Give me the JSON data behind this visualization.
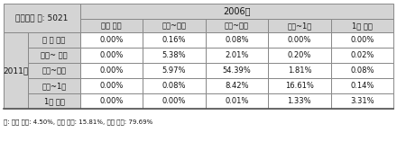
{
  "title_cell": "전체기업 수: 5021",
  "col_header_top": "2006년",
  "col_headers": [
    "십억 미만",
    "십억~백억",
    "백억~천억",
    "천억~1조",
    "1조 이상"
  ],
  "row_label_main": "2011년",
  "row_headers": [
    "십 억 미만",
    "십억~ 백억",
    "백억~천억",
    "천억~1조",
    "1조 이상"
  ],
  "data": [
    [
      "0.00%",
      "0.16%",
      "0.08%",
      "0.00%",
      "0.00%"
    ],
    [
      "0.00%",
      "5.38%",
      "2.01%",
      "0.20%",
      "0.02%"
    ],
    [
      "0.00%",
      "5.97%",
      "54.39%",
      "1.81%",
      "0.08%"
    ],
    [
      "0.00%",
      "0.08%",
      "8.42%",
      "16.61%",
      "0.14%"
    ],
    [
      "0.00%",
      "0.00%",
      "0.01%",
      "1.33%",
      "3.31%"
    ]
  ],
  "footnote": "주: 하위 이동: 4.50%, 상위 이동: 15.81%, 변동 없음: 79.69%",
  "bg_header": "#d4d4d4",
  "bg_white": "#ffffff",
  "border_color": "#888888",
  "text_color": "#111111",
  "font_size": 6.5
}
